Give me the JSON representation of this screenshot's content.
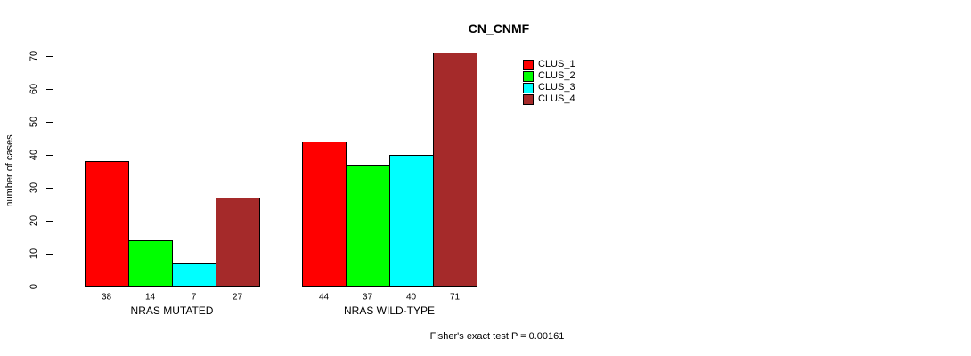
{
  "chart_data": {
    "type": "bar",
    "title": "CN_CNMF",
    "ylabel": "number of cases",
    "xlabel": "",
    "ylim": [
      0,
      70
    ],
    "yticks": [
      0,
      10,
      20,
      30,
      40,
      50,
      60,
      70
    ],
    "categories": [
      "NRAS MUTATED",
      "NRAS WILD-TYPE"
    ],
    "series": [
      {
        "name": "CLUS_1",
        "color": "#FF0000",
        "values": [
          38,
          44
        ]
      },
      {
        "name": "CLUS_2",
        "color": "#00FF00",
        "values": [
          14,
          37
        ]
      },
      {
        "name": "CLUS_3",
        "color": "#00FFFF",
        "values": [
          7,
          40
        ]
      },
      {
        "name": "CLUS_4",
        "color": "#A52A2A",
        "values": [
          27,
          71
        ]
      }
    ],
    "show_value_labels": true,
    "value_labels": [
      [
        38,
        14,
        7,
        27
      ],
      [
        44,
        37,
        40,
        71
      ]
    ],
    "legend_position": "top-right",
    "grid": false,
    "axis_color": "#000000",
    "footer": "Fisher's exact test P = 0.00161"
  }
}
